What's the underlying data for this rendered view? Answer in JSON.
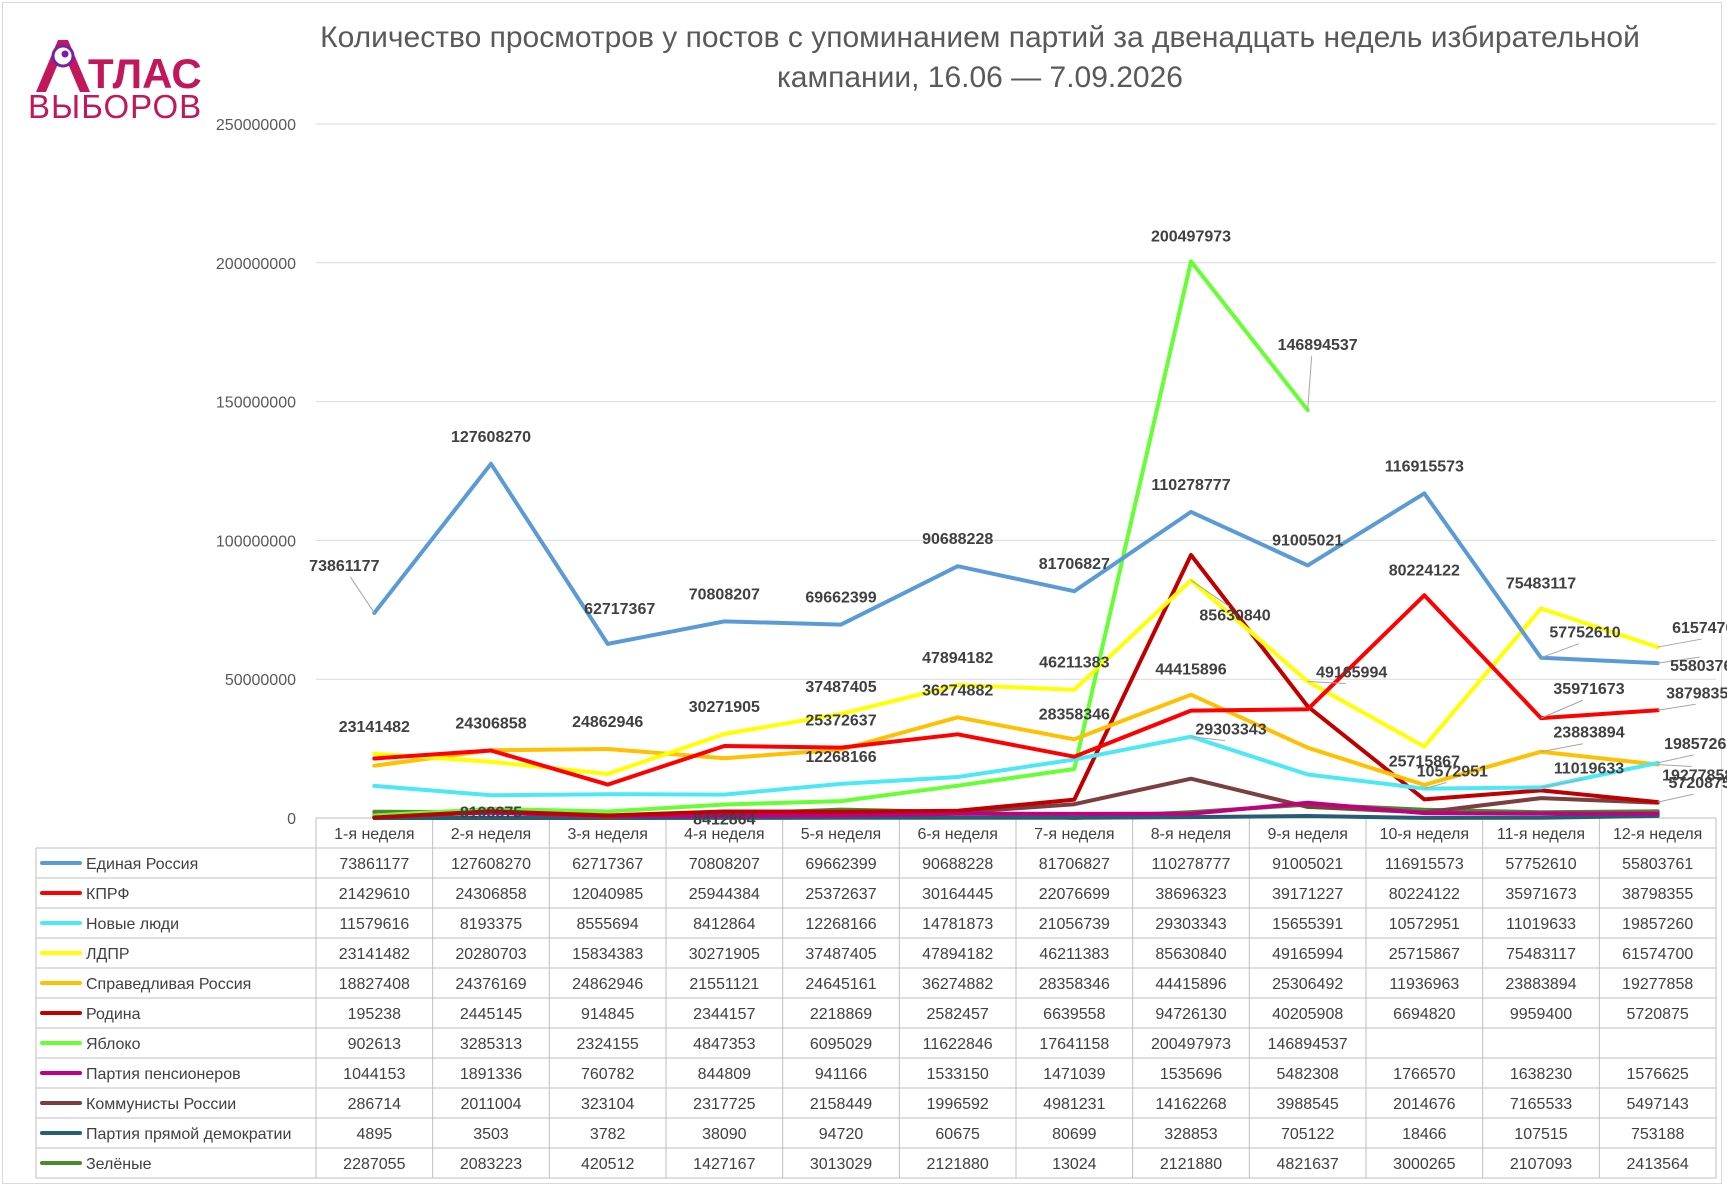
{
  "logo": {
    "line1": "ТЛАС",
    "line2": "ВЫБОРОВ",
    "colors": [
      "#c2185b",
      "#7b1fa2"
    ]
  },
  "chart_data": {
    "type": "line",
    "title": "Количество просмотров у постов с упоминанием партий за двенадцать недель избирательной кампании, 16.06 — 7.09.2026",
    "title_lines": [
      "Количество просмотров у постов с упоминанием партий за двенадцать недель избирательной",
      "кампании, 16.06 — 7.09.2026"
    ],
    "categories": [
      "1-я неделя",
      "2-я неделя",
      "3-я неделя",
      "4-я неделя",
      "5-я неделя",
      "6-я неделя",
      "7-я неделя",
      "8-я неделя",
      "9-я неделя",
      "10-я неделя",
      "11-я неделя",
      "12-я неделя"
    ],
    "ylim": [
      0,
      250000000
    ],
    "yticks": [
      0,
      50000000,
      100000000,
      150000000,
      200000000,
      250000000
    ],
    "ytick_labels": [
      "0",
      "50000000",
      "100000000",
      "150000000",
      "200000000",
      "250000000"
    ],
    "grid": true,
    "legend": "data-table",
    "series": [
      {
        "name": "Единая Россия",
        "color": "#5b9bd5",
        "values": [
          73861177,
          127608270,
          62717367,
          70808207,
          69662399,
          90688228,
          81706827,
          110278777,
          91005021,
          116915573,
          57752610,
          55803761
        ]
      },
      {
        "name": "КПРФ",
        "color": "#ff0000",
        "values": [
          21429610,
          24306858,
          12040985,
          25944384,
          25372637,
          30164445,
          22076699,
          38696323,
          39171227,
          80224122,
          35971673,
          38798355
        ]
      },
      {
        "name": "Новые люди",
        "color": "#4ce8f5",
        "values": [
          11579616,
          8193375,
          8555694,
          8412864,
          12268166,
          14781873,
          21056739,
          29303343,
          15655391,
          10572951,
          11019633,
          19857260
        ]
      },
      {
        "name": "ЛДПР",
        "color": "#ffff00",
        "values": [
          23141482,
          20280703,
          15834383,
          30271905,
          37487405,
          47894182,
          46211383,
          85630840,
          49165994,
          25715867,
          75483117,
          61574700
        ]
      },
      {
        "name": "Справедливая Россия",
        "color": "#ffc000",
        "values": [
          18827408,
          24376169,
          24862946,
          21551121,
          24645161,
          36274882,
          28358346,
          44415896,
          25306492,
          11936963,
          23883894,
          19277858
        ]
      },
      {
        "name": "Родина",
        "color": "#c00000",
        "values": [
          195238,
          2445145,
          914845,
          2344157,
          2218869,
          2582457,
          6639558,
          94726130,
          40205908,
          6694820,
          9959400,
          5720875
        ]
      },
      {
        "name": "Яблоко",
        "color": "#66ff33",
        "values": [
          902613,
          3285313,
          2324155,
          4847353,
          6095029,
          11622846,
          17641158,
          200497973,
          146894537,
          null,
          null,
          null
        ]
      },
      {
        "name": "Партия пенсионеров",
        "color": "#c00080",
        "values": [
          1044153,
          1891336,
          760782,
          844809,
          941166,
          1533150,
          1471039,
          1535696,
          5482308,
          1766570,
          1638230,
          1576625
        ]
      },
      {
        "name": "Коммунисты России",
        "color": "#7b3f3f",
        "values": [
          286714,
          2011004,
          323104,
          2317725,
          2158449,
          1996592,
          4981231,
          14162268,
          3988545,
          2014676,
          7165533,
          5497143
        ]
      },
      {
        "name": "Партия прямой демократии",
        "color": "#265d73",
        "values": [
          4895,
          3503,
          3782,
          38090,
          94720,
          60675,
          80699,
          328853,
          705122,
          18466,
          107515,
          753188
        ]
      },
      {
        "name": "Зелёные",
        "color": "#4a8a2a",
        "values": [
          2287055,
          2083223,
          420512,
          1427167,
          3013029,
          2121880,
          13024,
          2121880,
          4821637,
          3000265,
          2107093,
          2413564
        ]
      }
    ],
    "data_labels": [
      {
        "series": 0,
        "index": 0,
        "text": "73861177"
      },
      {
        "series": 0,
        "index": 1,
        "text": "127608270"
      },
      {
        "series": 0,
        "index": 2,
        "text": "62717367"
      },
      {
        "series": 0,
        "index": 3,
        "text": "70808207"
      },
      {
        "series": 0,
        "index": 4,
        "text": "69662399"
      },
      {
        "series": 0,
        "index": 5,
        "text": "90688228"
      },
      {
        "series": 0,
        "index": 6,
        "text": "81706827"
      },
      {
        "series": 0,
        "index": 7,
        "text": "110278777"
      },
      {
        "series": 0,
        "index": 8,
        "text": "91005021"
      },
      {
        "series": 0,
        "index": 9,
        "text": "116915573"
      },
      {
        "series": 0,
        "index": 10,
        "text": "57752610"
      },
      {
        "series": 0,
        "index": 11,
        "text": "55803761"
      },
      {
        "series": 6,
        "index": 7,
        "text": "200497973"
      },
      {
        "series": 6,
        "index": 8,
        "text": "146894537"
      },
      {
        "series": 1,
        "index": 9,
        "text": "80224122"
      },
      {
        "series": 3,
        "index": 10,
        "text": "75483117"
      },
      {
        "series": 3,
        "index": 11,
        "text": "61574700"
      },
      {
        "series": 3,
        "index": 7,
        "text": "85630840"
      },
      {
        "series": 3,
        "index": 8,
        "text": "49165994"
      },
      {
        "series": 3,
        "index": 0,
        "text": "23141482"
      },
      {
        "series": 1,
        "index": 1,
        "text": "24306858"
      },
      {
        "series": 4,
        "index": 2,
        "text": "24862946"
      },
      {
        "series": 3,
        "index": 3,
        "text": "30271905"
      },
      {
        "series": 3,
        "index": 4,
        "text": "37487405"
      },
      {
        "series": 3,
        "index": 5,
        "text": "47894182"
      },
      {
        "series": 3,
        "index": 6,
        "text": "46211383"
      },
      {
        "series": 4,
        "index": 7,
        "text": "44415896"
      },
      {
        "series": 3,
        "index": 9,
        "text": "25715867"
      },
      {
        "series": 1,
        "index": 10,
        "text": "35971673"
      },
      {
        "series": 1,
        "index": 11,
        "text": "38798355"
      },
      {
        "series": 1,
        "index": 4,
        "text": "25372637"
      },
      {
        "series": 4,
        "index": 5,
        "text": "36274882"
      },
      {
        "series": 4,
        "index": 6,
        "text": "28358346"
      },
      {
        "series": 4,
        "index": 10,
        "text": "23883894"
      },
      {
        "series": 2,
        "index": 11,
        "text": "19857260"
      },
      {
        "series": 2,
        "index": 1,
        "text": "8193375"
      },
      {
        "series": 2,
        "index": 3,
        "text": "8412864"
      },
      {
        "series": 2,
        "index": 4,
        "text": "12268166"
      },
      {
        "series": 2,
        "index": 7,
        "text": "29303343"
      },
      {
        "series": 2,
        "index": 9,
        "text": "10572951"
      },
      {
        "series": 2,
        "index": 10,
        "text": "11019633"
      },
      {
        "series": 4,
        "index": 11,
        "text": "19277858"
      },
      {
        "series": 5,
        "index": 11,
        "text": "5720875"
      }
    ]
  }
}
